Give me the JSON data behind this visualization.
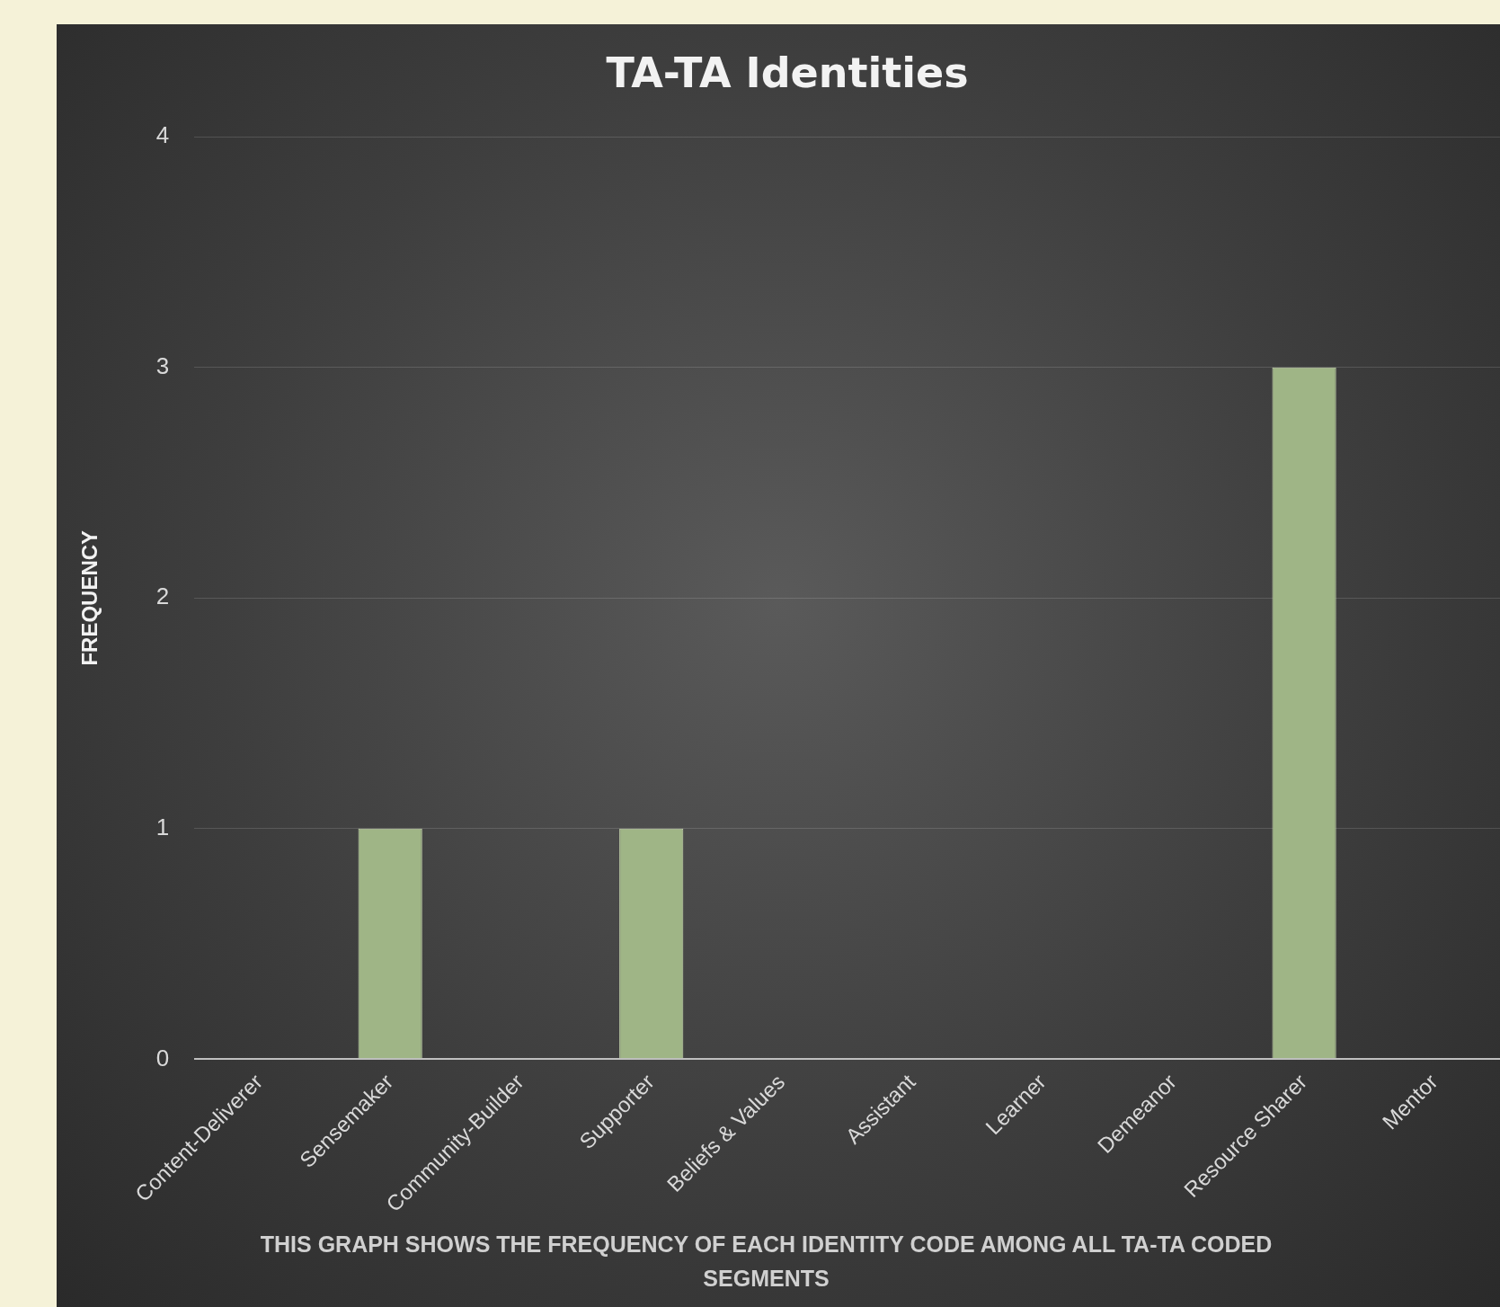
{
  "chart_data": {
    "type": "bar",
    "title": "TA-TA Identities",
    "xlabel": "THIS GRAPH SHOWS THE FREQUENCY OF EACH IDENTITY CODE AMONG ALL TA-TA CODED SEGMENTS",
    "ylabel": "FREQUENCY",
    "categories": [
      "Content-Deliverer",
      "Sensemaker",
      "Community-Builder",
      "Supporter",
      "Beliefs & Values",
      "Assistant",
      "Learner",
      "Demeanor",
      "Resource Sharer",
      "Mentor"
    ],
    "values": [
      0,
      1,
      0,
      1,
      0,
      0,
      0,
      0,
      3,
      0
    ],
    "color": "#9fb586",
    "ylim": [
      0,
      4
    ],
    "yticks": [
      0,
      1,
      2,
      3,
      4
    ],
    "grid": "y",
    "legend": false
  }
}
